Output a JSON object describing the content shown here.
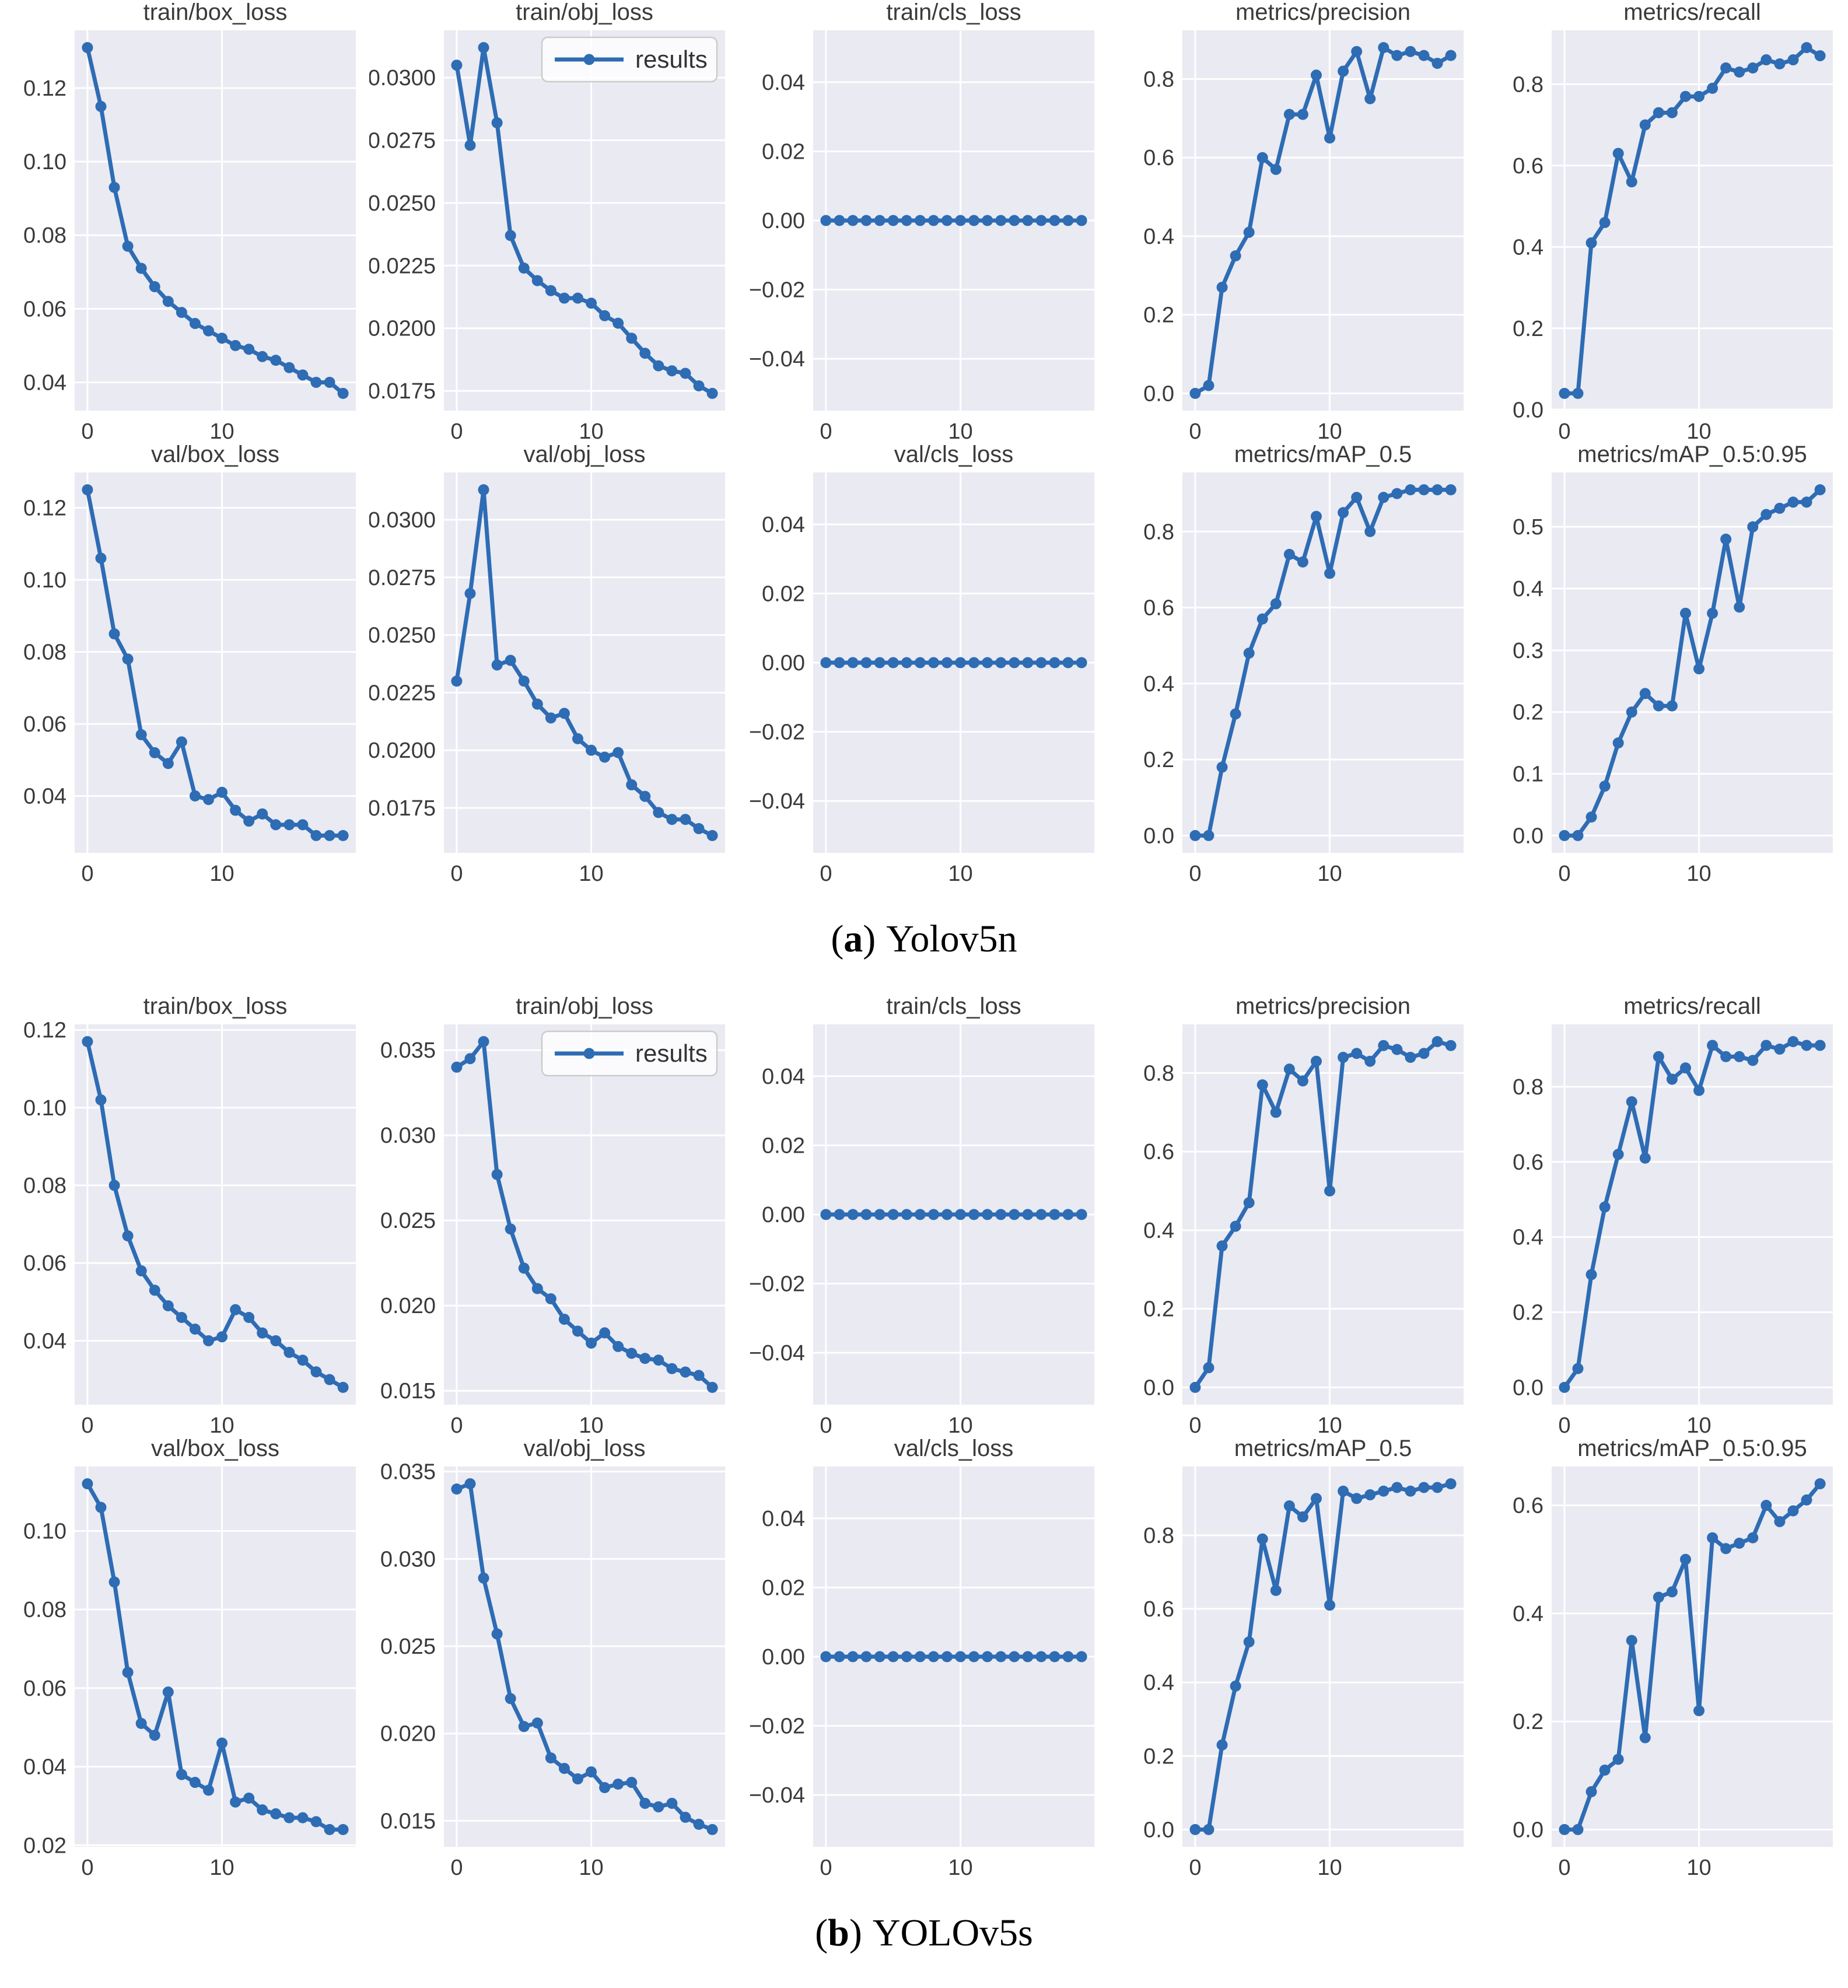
{
  "figure": {
    "line_color": "#2e6cb4",
    "axes_bg_color": "#eaeaf2",
    "grid_color": "#ffffff",
    "text_color": "#3a3a3a",
    "legend_label": "results"
  },
  "captions": [
    {
      "letter": "a",
      "text": "Yolov5n"
    },
    {
      "letter": "b",
      "text": "YOLOv5s"
    }
  ],
  "x": [
    0,
    1,
    2,
    3,
    4,
    5,
    6,
    7,
    8,
    9,
    10,
    11,
    12,
    13,
    14,
    15,
    16,
    17,
    18,
    19
  ],
  "chart_data": [
    {
      "group": "a",
      "row": 0,
      "col": 0,
      "type": "line",
      "title": "train/box_loss",
      "legend": null,
      "values": [
        0.131,
        0.115,
        0.093,
        0.077,
        0.071,
        0.066,
        0.062,
        0.059,
        0.056,
        0.054,
        0.052,
        0.05,
        0.049,
        0.047,
        0.046,
        0.044,
        0.042,
        0.04,
        0.04,
        0.037
      ],
      "yticks": [
        0.04,
        0.06,
        0.08,
        0.1,
        0.12
      ],
      "ytick_labels": [
        "0.04",
        "0.06",
        "0.08",
        "0.10",
        "0.12"
      ],
      "xticks": [
        0,
        10
      ],
      "xtick_labels": [
        "0",
        "10"
      ]
    },
    {
      "group": "a",
      "row": 0,
      "col": 1,
      "type": "line",
      "title": "train/obj_loss",
      "legend": "results",
      "values": [
        0.0305,
        0.0273,
        0.0312,
        0.0282,
        0.0237,
        0.0224,
        0.0219,
        0.0215,
        0.0212,
        0.0212,
        0.021,
        0.0205,
        0.0202,
        0.0196,
        0.019,
        0.0185,
        0.0183,
        0.0182,
        0.0177,
        0.0174
      ],
      "yticks": [
        0.0175,
        0.02,
        0.0225,
        0.025,
        0.0275,
        0.03
      ],
      "ytick_labels": [
        "0.0175",
        "0.0200",
        "0.0225",
        "0.0250",
        "0.0275",
        "0.0300"
      ],
      "xticks": [
        0,
        10
      ],
      "xtick_labels": [
        "0",
        "10"
      ]
    },
    {
      "group": "a",
      "row": 0,
      "col": 2,
      "type": "line",
      "title": "train/cls_loss",
      "legend": null,
      "values": [
        0,
        0,
        0,
        0,
        0,
        0,
        0,
        0,
        0,
        0,
        0,
        0,
        0,
        0,
        0,
        0,
        0,
        0,
        0,
        0
      ],
      "yticks": [
        -0.04,
        -0.02,
        0.0,
        0.02,
        0.04
      ],
      "ytick_labels": [
        "−0.04",
        "−0.02",
        "0.00",
        "0.02",
        "0.04"
      ],
      "xticks": [
        0,
        10
      ],
      "xtick_labels": [
        "0",
        "10"
      ]
    },
    {
      "group": "a",
      "row": 0,
      "col": 3,
      "type": "line",
      "title": "metrics/precision",
      "legend": null,
      "values": [
        0.0,
        0.02,
        0.27,
        0.35,
        0.41,
        0.6,
        0.57,
        0.71,
        0.71,
        0.81,
        0.65,
        0.82,
        0.87,
        0.75,
        0.88,
        0.86,
        0.87,
        0.86,
        0.84,
        0.86
      ],
      "yticks": [
        0.0,
        0.2,
        0.4,
        0.6,
        0.8
      ],
      "ytick_labels": [
        "0.0",
        "0.2",
        "0.4",
        "0.6",
        "0.8"
      ],
      "xticks": [
        0,
        10
      ],
      "xtick_labels": [
        "0",
        "10"
      ]
    },
    {
      "group": "a",
      "row": 0,
      "col": 4,
      "type": "line",
      "title": "metrics/recall",
      "legend": null,
      "values": [
        0.04,
        0.04,
        0.41,
        0.46,
        0.63,
        0.56,
        0.7,
        0.73,
        0.73,
        0.77,
        0.77,
        0.79,
        0.84,
        0.83,
        0.84,
        0.86,
        0.85,
        0.86,
        0.89,
        0.87
      ],
      "yticks": [
        0.0,
        0.2,
        0.4,
        0.6,
        0.8
      ],
      "ytick_labels": [
        "0.0",
        "0.2",
        "0.4",
        "0.6",
        "0.8"
      ],
      "xticks": [
        0,
        10
      ],
      "xtick_labels": [
        "0",
        "10"
      ]
    },
    {
      "group": "a",
      "row": 1,
      "col": 0,
      "type": "line",
      "title": "val/box_loss",
      "legend": null,
      "values": [
        0.125,
        0.106,
        0.085,
        0.078,
        0.057,
        0.052,
        0.049,
        0.055,
        0.04,
        0.039,
        0.041,
        0.036,
        0.033,
        0.035,
        0.032,
        0.032,
        0.032,
        0.029,
        0.029,
        0.029
      ],
      "yticks": [
        0.04,
        0.06,
        0.08,
        0.1,
        0.12
      ],
      "ytick_labels": [
        "0.04",
        "0.06",
        "0.08",
        "0.10",
        "0.12"
      ],
      "xticks": [
        0,
        10
      ],
      "xtick_labels": [
        "0",
        "10"
      ]
    },
    {
      "group": "a",
      "row": 1,
      "col": 1,
      "type": "line",
      "title": "val/obj_loss",
      "legend": null,
      "values": [
        0.023,
        0.0268,
        0.0313,
        0.0237,
        0.0239,
        0.023,
        0.022,
        0.0214,
        0.0216,
        0.0205,
        0.02,
        0.0197,
        0.0199,
        0.0185,
        0.018,
        0.0173,
        0.017,
        0.017,
        0.0166,
        0.0163
      ],
      "yticks": [
        0.0175,
        0.02,
        0.0225,
        0.025,
        0.0275,
        0.03
      ],
      "ytick_labels": [
        "0.0175",
        "0.0200",
        "0.0225",
        "0.0250",
        "0.0275",
        "0.0300"
      ],
      "xticks": [
        0,
        10
      ],
      "xtick_labels": [
        "0",
        "10"
      ]
    },
    {
      "group": "a",
      "row": 1,
      "col": 2,
      "type": "line",
      "title": "val/cls_loss",
      "legend": null,
      "values": [
        0,
        0,
        0,
        0,
        0,
        0,
        0,
        0,
        0,
        0,
        0,
        0,
        0,
        0,
        0,
        0,
        0,
        0,
        0,
        0
      ],
      "yticks": [
        -0.04,
        -0.02,
        0.0,
        0.02,
        0.04
      ],
      "ytick_labels": [
        "−0.04",
        "−0.02",
        "0.00",
        "0.02",
        "0.04"
      ],
      "xticks": [
        0,
        10
      ],
      "xtick_labels": [
        "0",
        "10"
      ]
    },
    {
      "group": "a",
      "row": 1,
      "col": 3,
      "type": "line",
      "title": "metrics/mAP_0.5",
      "legend": null,
      "values": [
        0.0,
        0.0,
        0.18,
        0.32,
        0.48,
        0.57,
        0.61,
        0.74,
        0.72,
        0.84,
        0.69,
        0.85,
        0.89,
        0.8,
        0.89,
        0.9,
        0.91,
        0.91,
        0.91,
        0.91
      ],
      "yticks": [
        0.0,
        0.2,
        0.4,
        0.6,
        0.8
      ],
      "ytick_labels": [
        "0.0",
        "0.2",
        "0.4",
        "0.6",
        "0.8"
      ],
      "xticks": [
        0,
        10
      ],
      "xtick_labels": [
        "0",
        "10"
      ]
    },
    {
      "group": "a",
      "row": 1,
      "col": 4,
      "type": "line",
      "title": "metrics/mAP_0.5:0.95",
      "legend": null,
      "values": [
        0.0,
        0.0,
        0.03,
        0.08,
        0.15,
        0.2,
        0.23,
        0.21,
        0.21,
        0.36,
        0.27,
        0.36,
        0.48,
        0.37,
        0.5,
        0.52,
        0.53,
        0.54,
        0.54,
        0.56
      ],
      "yticks": [
        0.0,
        0.1,
        0.2,
        0.3,
        0.4,
        0.5
      ],
      "ytick_labels": [
        "0.0",
        "0.1",
        "0.2",
        "0.3",
        "0.4",
        "0.5"
      ],
      "xticks": [
        0,
        10
      ],
      "xtick_labels": [
        "0",
        "10"
      ]
    },
    {
      "group": "b",
      "row": 0,
      "col": 0,
      "type": "line",
      "title": "train/box_loss",
      "legend": null,
      "values": [
        0.117,
        0.102,
        0.08,
        0.067,
        0.058,
        0.053,
        0.049,
        0.046,
        0.043,
        0.04,
        0.041,
        0.048,
        0.046,
        0.042,
        0.04,
        0.037,
        0.035,
        0.032,
        0.03,
        0.028
      ],
      "yticks": [
        0.04,
        0.06,
        0.08,
        0.1,
        0.12
      ],
      "ytick_labels": [
        "0.04",
        "0.06",
        "0.08",
        "0.10",
        "0.12"
      ],
      "xticks": [
        0,
        10
      ],
      "xtick_labels": [
        "0",
        "10"
      ]
    },
    {
      "group": "b",
      "row": 0,
      "col": 1,
      "type": "line",
      "title": "train/obj_loss",
      "legend": "results",
      "values": [
        0.034,
        0.0345,
        0.0355,
        0.0277,
        0.0245,
        0.0222,
        0.021,
        0.0204,
        0.0192,
        0.0185,
        0.0178,
        0.0184,
        0.0176,
        0.0172,
        0.0169,
        0.0168,
        0.0163,
        0.0161,
        0.0159,
        0.0152
      ],
      "yticks": [
        0.015,
        0.02,
        0.025,
        0.03,
        0.035
      ],
      "ytick_labels": [
        "0.015",
        "0.020",
        "0.025",
        "0.030",
        "0.035"
      ],
      "xticks": [
        0,
        10
      ],
      "xtick_labels": [
        "0",
        "10"
      ]
    },
    {
      "group": "b",
      "row": 0,
      "col": 2,
      "type": "line",
      "title": "train/cls_loss",
      "legend": null,
      "values": [
        0,
        0,
        0,
        0,
        0,
        0,
        0,
        0,
        0,
        0,
        0,
        0,
        0,
        0,
        0,
        0,
        0,
        0,
        0,
        0
      ],
      "yticks": [
        -0.04,
        -0.02,
        0.0,
        0.02,
        0.04
      ],
      "ytick_labels": [
        "−0.04",
        "−0.02",
        "0.00",
        "0.02",
        "0.04"
      ],
      "xticks": [
        0,
        10
      ],
      "xtick_labels": [
        "0",
        "10"
      ]
    },
    {
      "group": "b",
      "row": 0,
      "col": 3,
      "type": "line",
      "title": "metrics/precision",
      "legend": null,
      "values": [
        0.0,
        0.05,
        0.36,
        0.41,
        0.47,
        0.77,
        0.7,
        0.81,
        0.78,
        0.83,
        0.5,
        0.84,
        0.85,
        0.83,
        0.87,
        0.86,
        0.84,
        0.85,
        0.88,
        0.87
      ],
      "yticks": [
        0.0,
        0.2,
        0.4,
        0.6,
        0.8
      ],
      "ytick_labels": [
        "0.0",
        "0.2",
        "0.4",
        "0.6",
        "0.8"
      ],
      "xticks": [
        0,
        10
      ],
      "xtick_labels": [
        "0",
        "10"
      ]
    },
    {
      "group": "b",
      "row": 0,
      "col": 4,
      "type": "line",
      "title": "metrics/recall",
      "legend": null,
      "values": [
        0.0,
        0.05,
        0.3,
        0.48,
        0.62,
        0.76,
        0.61,
        0.88,
        0.82,
        0.85,
        0.79,
        0.91,
        0.88,
        0.88,
        0.87,
        0.91,
        0.9,
        0.92,
        0.91,
        0.91
      ],
      "yticks": [
        0.0,
        0.2,
        0.4,
        0.6,
        0.8
      ],
      "ytick_labels": [
        "0.0",
        "0.2",
        "0.4",
        "0.6",
        "0.8"
      ],
      "xticks": [
        0,
        10
      ],
      "xtick_labels": [
        "0",
        "10"
      ]
    },
    {
      "group": "b",
      "row": 1,
      "col": 0,
      "type": "line",
      "title": "val/box_loss",
      "legend": null,
      "values": [
        0.112,
        0.106,
        0.087,
        0.064,
        0.051,
        0.048,
        0.059,
        0.038,
        0.036,
        0.034,
        0.046,
        0.031,
        0.032,
        0.029,
        0.028,
        0.027,
        0.027,
        0.026,
        0.024,
        0.024
      ],
      "yticks": [
        0.02,
        0.04,
        0.06,
        0.08,
        0.1
      ],
      "ytick_labels": [
        "0.02",
        "0.04",
        "0.06",
        "0.08",
        "0.10"
      ],
      "xticks": [
        0,
        10
      ],
      "xtick_labels": [
        "0",
        "10"
      ]
    },
    {
      "group": "b",
      "row": 1,
      "col": 1,
      "type": "line",
      "title": "val/obj_loss",
      "legend": null,
      "values": [
        0.034,
        0.0343,
        0.0289,
        0.0257,
        0.022,
        0.0204,
        0.0206,
        0.0186,
        0.018,
        0.0174,
        0.0178,
        0.0169,
        0.0171,
        0.0172,
        0.016,
        0.0158,
        0.016,
        0.0152,
        0.0148,
        0.0145
      ],
      "yticks": [
        0.015,
        0.02,
        0.025,
        0.03,
        0.035
      ],
      "ytick_labels": [
        "0.015",
        "0.020",
        "0.025",
        "0.030",
        "0.035"
      ],
      "xticks": [
        0,
        10
      ],
      "xtick_labels": [
        "0",
        "10"
      ]
    },
    {
      "group": "b",
      "row": 1,
      "col": 2,
      "type": "line",
      "title": "val/cls_loss",
      "legend": null,
      "values": [
        0,
        0,
        0,
        0,
        0,
        0,
        0,
        0,
        0,
        0,
        0,
        0,
        0,
        0,
        0,
        0,
        0,
        0,
        0,
        0
      ],
      "yticks": [
        -0.04,
        -0.02,
        0.0,
        0.02,
        0.04
      ],
      "ytick_labels": [
        "−0.04",
        "−0.02",
        "0.00",
        "0.02",
        "0.04"
      ],
      "xticks": [
        0,
        10
      ],
      "xtick_labels": [
        "0",
        "10"
      ]
    },
    {
      "group": "b",
      "row": 1,
      "col": 3,
      "type": "line",
      "title": "metrics/mAP_0.5",
      "legend": null,
      "values": [
        0.0,
        0.0,
        0.23,
        0.39,
        0.51,
        0.79,
        0.65,
        0.88,
        0.85,
        0.9,
        0.61,
        0.92,
        0.9,
        0.91,
        0.92,
        0.93,
        0.92,
        0.93,
        0.93,
        0.94
      ],
      "yticks": [
        0.0,
        0.2,
        0.4,
        0.6,
        0.8
      ],
      "ytick_labels": [
        "0.0",
        "0.2",
        "0.4",
        "0.6",
        "0.8"
      ],
      "xticks": [
        0,
        10
      ],
      "xtick_labels": [
        "0",
        "10"
      ]
    },
    {
      "group": "b",
      "row": 1,
      "col": 4,
      "type": "line",
      "title": "metrics/mAP_0.5:0.95",
      "legend": null,
      "values": [
        0.0,
        0.0,
        0.07,
        0.11,
        0.13,
        0.35,
        0.17,
        0.43,
        0.44,
        0.5,
        0.22,
        0.54,
        0.52,
        0.53,
        0.54,
        0.6,
        0.57,
        0.59,
        0.61,
        0.64
      ],
      "yticks": [
        0.0,
        0.2,
        0.4,
        0.6
      ],
      "ytick_labels": [
        "0.0",
        "0.2",
        "0.4",
        "0.6"
      ],
      "xticks": [
        0,
        10
      ],
      "xtick_labels": [
        "0",
        "10"
      ]
    }
  ]
}
